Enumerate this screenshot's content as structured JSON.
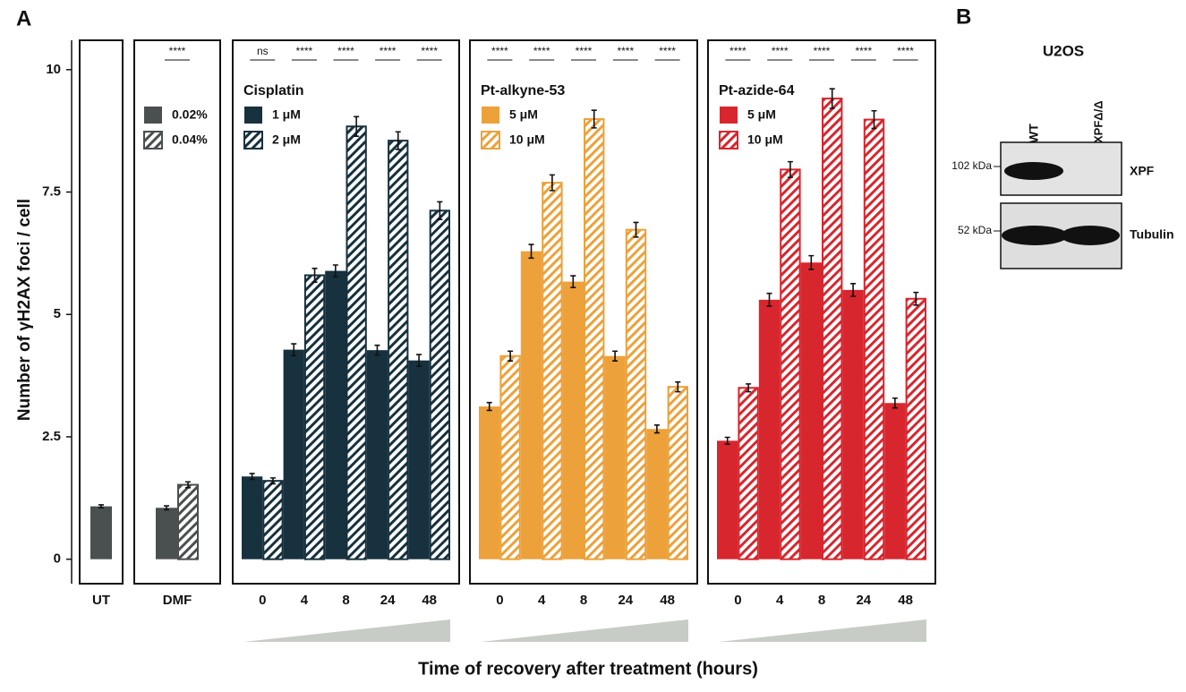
{
  "chart_data": {
    "type": "bar",
    "panel_label": "A",
    "y_label": "Number of γH2AX foci / cell",
    "x_label": "Time of recovery after treatment (hours)",
    "ylim": [
      -0.5,
      10.6
    ],
    "yticks": [
      0,
      2.5,
      5,
      7.5,
      10
    ],
    "panels": [
      {
        "categories": [
          "UT"
        ],
        "series": [
          {
            "color": "#4a4f4f",
            "hatched": false,
            "values": [
              1.08
            ],
            "errors": [
              0.03
            ]
          }
        ]
      },
      {
        "categories": [
          "DMF"
        ],
        "significance": [
          "****"
        ],
        "series": [
          {
            "name": "0.02%",
            "color": "#4a4f4f",
            "hatched": false,
            "values": [
              1.05
            ],
            "errors": [
              0.04
            ]
          },
          {
            "name": "0.04%",
            "color": "#4a4f4f",
            "hatched": true,
            "values": [
              1.52
            ],
            "errors": [
              0.06
            ]
          }
        ]
      },
      {
        "title": "Cisplatin",
        "color": "#17313e",
        "categories": [
          "0",
          "4",
          "8",
          "24",
          "48"
        ],
        "significance": [
          "ns",
          "****",
          "****",
          "****",
          "****"
        ],
        "series": [
          {
            "name": "1 μM",
            "color": "#17313e",
            "hatched": false,
            "values": [
              1.69,
              4.28,
              5.89,
              4.27,
              4.06
            ],
            "errors": [
              0.06,
              0.12,
              0.12,
              0.1,
              0.12
            ]
          },
          {
            "name": "2 μM",
            "color": "#17313e",
            "hatched": true,
            "values": [
              1.6,
              5.8,
              8.84,
              8.55,
              7.12
            ],
            "errors": [
              0.06,
              0.14,
              0.2,
              0.18,
              0.18
            ]
          }
        ]
      },
      {
        "title": "Pt-alkyne-53",
        "color": "#eda13a",
        "categories": [
          "0",
          "4",
          "8",
          "24",
          "48"
        ],
        "significance": [
          "****",
          "****",
          "****",
          "****",
          "****"
        ],
        "series": [
          {
            "name": "5 μM",
            "color": "#eda13a",
            "hatched": false,
            "values": [
              3.12,
              6.29,
              5.67,
              4.15,
              2.66
            ],
            "errors": [
              0.08,
              0.14,
              0.12,
              0.1,
              0.08
            ]
          },
          {
            "name": "10 μM",
            "color": "#eda13a",
            "hatched": true,
            "values": [
              4.15,
              7.69,
              8.99,
              6.73,
              3.52
            ],
            "errors": [
              0.1,
              0.16,
              0.18,
              0.15,
              0.1
            ]
          }
        ]
      },
      {
        "title": "Pt-azide-64",
        "color": "#d8262e",
        "categories": [
          "0",
          "4",
          "8",
          "24",
          "48"
        ],
        "significance": [
          "****",
          "****",
          "****",
          "****",
          "****"
        ],
        "series": [
          {
            "name": "5 μM",
            "color": "#d8262e",
            "hatched": false,
            "values": [
              2.42,
              5.3,
              6.06,
              5.5,
              3.19
            ],
            "errors": [
              0.07,
              0.13,
              0.14,
              0.13,
              0.1
            ]
          },
          {
            "name": "10 μM",
            "color": "#d8262e",
            "hatched": true,
            "values": [
              3.5,
              7.96,
              9.41,
              8.98,
              5.32
            ],
            "errors": [
              0.08,
              0.16,
              0.2,
              0.18,
              0.13
            ]
          }
        ]
      }
    ]
  },
  "blot": {
    "panel_label": "B",
    "title": "U2OS",
    "lanes": [
      "WT",
      "XPFΔ/Δ"
    ],
    "rows": [
      {
        "marker": "102 kDa",
        "protein": "XPF"
      },
      {
        "marker": "52 kDa",
        "protein": "Tubulin"
      }
    ]
  }
}
